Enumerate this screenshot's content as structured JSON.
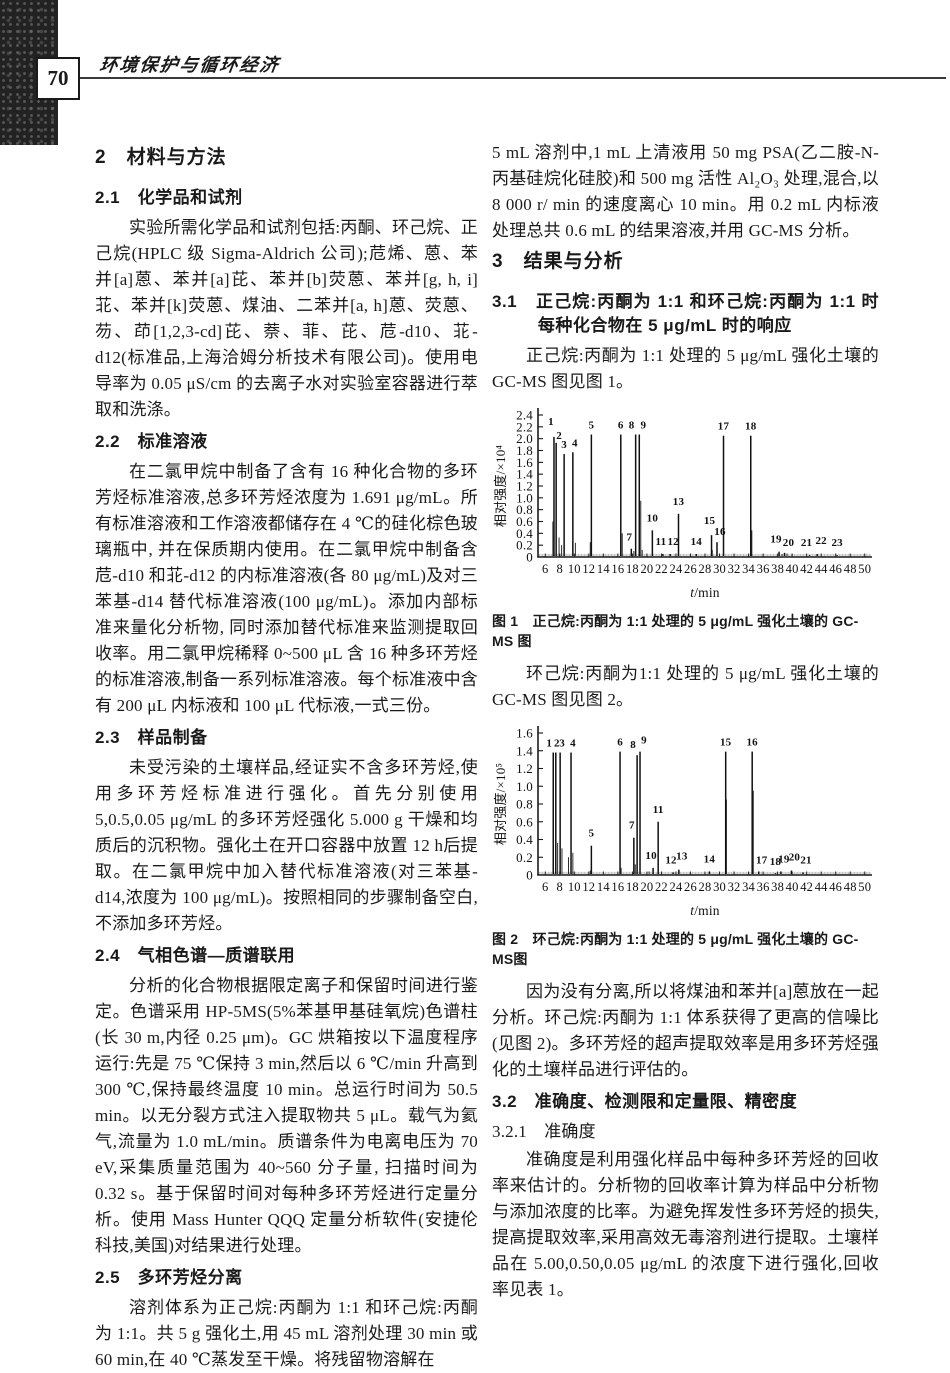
{
  "page": {
    "number": "70",
    "journal_title": "环境保护与循环经济"
  },
  "columns": {
    "left": [
      {
        "type": "h2",
        "text": "2　材料与方法"
      },
      {
        "type": "h3",
        "text": "2.1　化学品和试剂"
      },
      {
        "type": "p",
        "text": "实验所需化学品和试剂包括:丙酮、环己烷、正己烷(HPLC 级 Sigma-Aldrich 公司);苊烯、蒽、苯并[a]蒽、苯并[a]芘、苯并[b]荧蒽、苯并[g, h, i]苝、苯并[k]荧蒽、煤油、二苯并[a, h]蒽、荧蒽、芴、茚[1,2,3-cd]芘、萘、菲、芘、苊-d10、苝-d12(标准品,上海洽姆分析技术有限公司)。使用电导率为 0.05 μS/cm 的去离子水对实验室容器进行萃取和洗涤。"
      },
      {
        "type": "h3",
        "text": "2.2　标准溶液"
      },
      {
        "type": "p",
        "text": "在二氯甲烷中制备了含有 16 种化合物的多环芳烃标准溶液,总多环芳烃浓度为 1.691 μg/mL。所有标准溶液和工作溶液都储存在 4 ℃的硅化棕色玻璃瓶中, 并在保质期内使用。在二氯甲烷中制备含苊-d10 和苝-d12 的内标准溶液(各 80 μg/mL)及对三苯基-d14 替代标准溶液(100 μg/mL)。添加内部标准来量化分析物, 同时添加替代标准来监测提取回收率。用二氯甲烷稀释 0~500 μL 含 16 种多环芳烃的标准溶液,制备一系列标准溶液。每个标准液中含有 200 μL 内标液和 100 μL 代标液,一式三份。"
      },
      {
        "type": "h3",
        "text": "2.3　样品制备"
      },
      {
        "type": "p",
        "text": "未受污染的土壤样品,经证实不含多环芳烃,使用多环芳烃标准进行强化。首先分别使用 5,0.5,0.05 μg/mL 的多环芳烃强化 5.000 g 干燥和均质后的沉积物。强化土在开口容器中放置 12 h后提取。在二氯甲烷中加入替代标准溶液(对三苯基-d14,浓度为 100 μg/mL)。按照相同的步骤制备空白,不添加多环芳烃。"
      },
      {
        "type": "h3",
        "text": "2.4　气相色谱—质谱联用"
      },
      {
        "type": "p",
        "text": "分析的化合物根据限定离子和保留时间进行鉴定。色谱采用 HP-5MS(5%苯基甲基硅氧烷)色谱柱(长 30 m,内径 0.25 μm)。GC 烘箱按以下温度程序运行:先是 75 ℃保持 3 min,然后以 6 ℃/min 升高到 300 ℃,保持最终温度 10 min。总运行时间为 50.5 min。以无分裂方式注入提取物共 5 μL。载气为氦气,流量为 1.0 mL/min。质谱条件为电离电压为 70 eV,采集质量范围为 40~560 分子量, 扫描时间为 0.32 s。基于保留时间对每种多环芳烃进行定量分析。使用 Mass Hunter QQQ 定量分析软件(安捷伦科技,美国)对结果进行处理。"
      },
      {
        "type": "h3",
        "text": "2.5　多环芳烃分离"
      },
      {
        "type": "p",
        "text": "溶剂体系为正己烷:丙酮为 1:1 和环己烷:丙酮为 1:1。共 5 g 强化土,用 45 mL 溶剂处理 30 min 或 60 min,在 40 ℃蒸发至干燥。将残留物溶解在"
      }
    ],
    "right": [
      {
        "type": "p",
        "noindent": true,
        "text": "5 mL 溶剂中,1 mL 上清液用 50 mg PSA(乙二胺-N-丙基硅烷化硅胶)和 500 mg 活性 Al₂O₃ 处理,混合,以 8 000 r/ min 的速度离心 10 min。用 0.2 mL 内标液处理总共 0.6 mL 的结果溶液,并用 GC-MS 分析。"
      },
      {
        "type": "h2",
        "text": "3　结果与分析"
      },
      {
        "type": "h3",
        "hang": true,
        "text": "3.1　正己烷:丙酮为 1:1 和环己烷:丙酮为 1:1 时每种化合物在 5 μg/mL 时的响应"
      },
      {
        "type": "p",
        "text": "正己烷:丙酮为 1:1 处理的 5 μg/mL 强化土壤的 GC-MS 图见图 1。"
      },
      {
        "type": "chart",
        "chart": 0
      },
      {
        "type": "caption",
        "text": "图 1　正己烷:丙酮为 1:1 处理的 5 μg/mL 强化土壤的 GC-MS 图"
      },
      {
        "type": "p",
        "text": "环己烷:丙酮为1:1 处理的 5 μg/mL 强化土壤的 GC-MS 图见图 2。"
      },
      {
        "type": "chart",
        "chart": 1
      },
      {
        "type": "caption",
        "text": "图 2　环己烷:丙酮为 1:1 处理的 5 μg/mL 强化土壤的 GC-MS图"
      },
      {
        "type": "p",
        "text": "因为没有分离,所以将煤油和苯并[a]蒽放在一起分析。环己烷:丙酮为 1:1 体系获得了更高的信噪比(见图 2)。多环芳烃的超声提取效率是用多环芳烃强化的土壤样品进行评估的。"
      },
      {
        "type": "h3",
        "text": "3.2　准确度、检测限和定量限、精密度"
      },
      {
        "type": "h4",
        "text": "3.2.1　准确度"
      },
      {
        "type": "p",
        "text": "准确度是利用强化样品中每种多环芳烃的回收率来估计的。分析物的回收率计算为样品中分析物与添加浓度的比率。为避免挥发性多环芳烃的损失,提高提取效率,采用高效无毒溶剂进行提取。土壤样品在 5.00,0.50,0.05 μg/mL 的浓度下进行强化,回收率见表 1。"
      }
    ]
  },
  "chart_data": [
    {
      "type": "line",
      "title": "正己烷:丙酮为 1:1 处理的 5 μg/mL 强化土壤的 GC-MS 图",
      "xlabel": "t/min",
      "ylabel": "相对强度/×10⁴",
      "xlim": [
        5,
        51
      ],
      "ylim": [
        0,
        2.4
      ],
      "ytick_step": 0.2,
      "xticks": [
        6,
        8,
        10,
        12,
        14,
        16,
        18,
        20,
        22,
        24,
        26,
        28,
        30,
        32,
        34,
        36,
        38,
        40,
        42,
        44,
        46,
        48,
        50
      ],
      "grid": false,
      "legend": "none",
      "peaks": [
        [
          7.2,
          2.03,
          "1",
          -3,
          -8
        ],
        [
          7.5,
          1.93,
          "2",
          3,
          0
        ],
        [
          8.6,
          1.74,
          "3",
          0,
          -2
        ],
        [
          9.8,
          1.77,
          "4",
          2,
          -2
        ],
        [
          12.35,
          2.07,
          "5",
          0,
          -2
        ],
        [
          16.4,
          2.07,
          "6",
          0,
          -2
        ],
        [
          17.85,
          0.14,
          "7",
          -2,
          -4
        ],
        [
          18.45,
          2.07,
          "8",
          -4,
          -2
        ],
        [
          18.95,
          2.07,
          "9",
          4,
          -2
        ],
        [
          20.75,
          0.45,
          "10",
          0,
          -5
        ],
        [
          22.2,
          0.05,
          "11",
          -2,
          -5
        ],
        [
          23.2,
          0.05,
          "12",
          3,
          -5
        ],
        [
          24.35,
          0.73,
          "13",
          0,
          -5
        ],
        [
          26.8,
          0.05,
          "14",
          0,
          -5
        ],
        [
          28.9,
          0.37,
          "15",
          -2,
          -7
        ],
        [
          29.65,
          0.25,
          "16",
          3,
          -3
        ],
        [
          30.55,
          2.05,
          "17",
          0,
          -2
        ],
        [
          34.3,
          2.05,
          "18",
          0,
          -2
        ],
        [
          38.2,
          0.09,
          "19",
          -3,
          -5
        ],
        [
          38.95,
          0.07,
          "20",
          4,
          -3
        ],
        [
          42.4,
          0.03,
          "21",
          -3,
          -5
        ],
        [
          43.45,
          0.05,
          "22",
          4,
          -6
        ],
        [
          46.2,
          0.03,
          "23",
          0,
          -5
        ]
      ],
      "minor_peaks": [
        [
          7.05,
          0.6
        ],
        [
          7.9,
          0.33
        ],
        [
          8.25,
          0.2
        ],
        [
          10.15,
          0.24
        ],
        [
          12.2,
          0.25
        ],
        [
          16.6,
          0.4
        ],
        [
          18.2,
          0.1
        ],
        [
          19.15,
          0.95
        ],
        [
          19.35,
          0.12
        ],
        [
          29.0,
          0.12
        ],
        [
          34.45,
          0.45
        ],
        [
          38.6,
          0.05
        ],
        [
          39.3,
          0.06
        ],
        [
          40.0,
          0.05
        ]
      ]
    },
    {
      "type": "line",
      "title": "环己烷:丙酮为 1:1 处理的 5 μg/mL 强化土壤的 GC-MS图",
      "xlabel": "t/min",
      "ylabel": "相对强度/×10⁵",
      "xlim": [
        5,
        51
      ],
      "ylim": [
        0,
        1.6
      ],
      "ytick_step": 0.2,
      "xticks": [
        6,
        8,
        10,
        12,
        14,
        16,
        18,
        20,
        22,
        24,
        26,
        28,
        30,
        32,
        34,
        36,
        38,
        40,
        42,
        44,
        46,
        48,
        50
      ],
      "grid": false,
      "legend": "none",
      "peaks": [
        [
          7.1,
          1.38,
          "1",
          -4,
          -2
        ],
        [
          7.45,
          1.38,
          "2",
          1,
          -2
        ],
        [
          8.05,
          1.38,
          "3",
          2,
          -2
        ],
        [
          9.55,
          1.38,
          "4",
          2,
          -2
        ],
        [
          12.35,
          0.33,
          "5",
          0,
          -5
        ],
        [
          16.3,
          1.39,
          "6",
          0,
          -2
        ],
        [
          18.2,
          0.42,
          "7",
          -2,
          -5
        ],
        [
          18.65,
          1.35,
          "8",
          -4,
          -3
        ],
        [
          19.05,
          1.39,
          "9",
          4,
          -4
        ],
        [
          20.85,
          0.08,
          "10",
          -2,
          -5
        ],
        [
          21.55,
          0.6,
          "11",
          0,
          -5
        ],
        [
          23.6,
          0.03,
          "12",
          -2,
          -5
        ],
        [
          24.4,
          0.06,
          "13",
          3,
          -6
        ],
        [
          28.6,
          0.04,
          "14",
          0,
          -5
        ],
        [
          30.85,
          1.39,
          "15",
          0,
          -2
        ],
        [
          34.5,
          1.39,
          "16",
          0,
          -2
        ],
        [
          35.4,
          0.04,
          "17",
          3,
          -4
        ],
        [
          37.7,
          0.02,
          "18",
          0,
          -4
        ],
        [
          38.45,
          0.04,
          "19",
          3,
          -5
        ],
        [
          39.9,
          0.05,
          "20",
          3,
          -6
        ],
        [
          41.5,
          0.03,
          "21",
          3,
          -5
        ]
      ],
      "minor_peaks": [
        [
          7.7,
          0.36
        ],
        [
          8.3,
          0.3
        ],
        [
          9.2,
          0.2
        ],
        [
          9.8,
          0.25
        ],
        [
          12.2,
          0.05
        ],
        [
          16.45,
          0.08
        ],
        [
          18.4,
          0.12
        ],
        [
          20.3,
          0.04
        ],
        [
          30.95,
          0.85
        ],
        [
          34.65,
          0.95
        ]
      ]
    }
  ]
}
